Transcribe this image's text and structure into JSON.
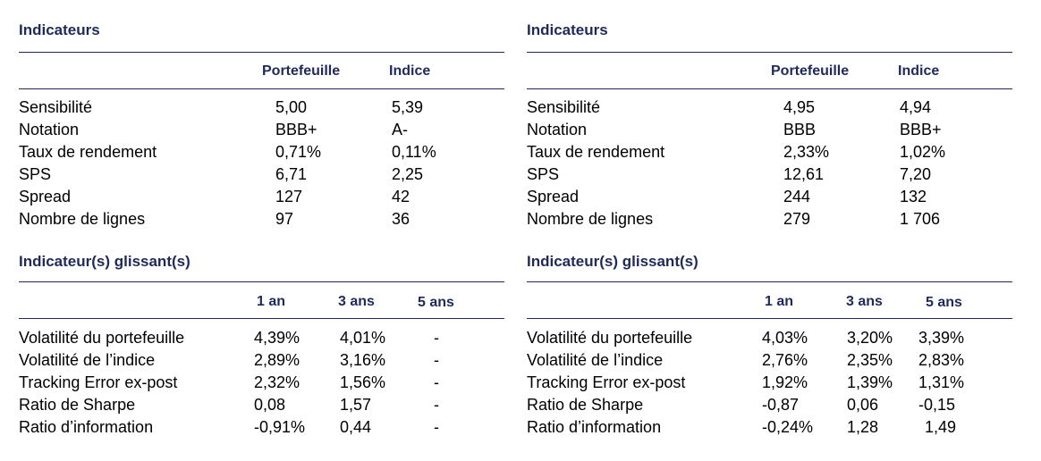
{
  "panels": [
    {
      "indicators": {
        "title": "Indicateurs",
        "col_portfolio": "Portefeuille",
        "col_index": "Indice",
        "rows": [
          {
            "label": "Sensibilité",
            "portfolio": "5,00",
            "index": "5,39"
          },
          {
            "label": "Notation",
            "portfolio": "BBB+",
            "index": "A-"
          },
          {
            "label": "Taux de rendement",
            "portfolio": "0,71%",
            "index": "0,11%"
          },
          {
            "label": "SPS",
            "portfolio": "6,71",
            "index": "2,25"
          },
          {
            "label": "Spread",
            "portfolio": "127",
            "index": "42"
          },
          {
            "label": "Nombre de lignes",
            "portfolio": "97",
            "index": "36"
          }
        ]
      },
      "rolling": {
        "title": "Indicateur(s) glissant(s)",
        "col_1y": "1 an",
        "col_3y": "3 ans",
        "col_5y": "5 ans",
        "rows": [
          {
            "label": "Volatilité du portefeuille",
            "y1": "4,39%",
            "y3": "4,01%",
            "y5": "-"
          },
          {
            "label": "Volatilité de l’indice",
            "y1": "2,89%",
            "y3": "3,16%",
            "y5": "-"
          },
          {
            "label": "Tracking Error ex-post",
            "y1": "2,32%",
            "y3": "1,56%",
            "y5": "-"
          },
          {
            "label": "Ratio de Sharpe",
            "y1": "0,08",
            "y3": "1,57",
            "y5": "-"
          },
          {
            "label": "Ratio d’information",
            "y1": "-0,91%",
            "y3": "0,44",
            "y5": "-"
          }
        ]
      }
    },
    {
      "indicators": {
        "title": "Indicateurs",
        "col_portfolio": "Portefeuille",
        "col_index": "Indice",
        "rows": [
          {
            "label": "Sensibilité",
            "portfolio": "4,95",
            "index": "4,94"
          },
          {
            "label": "Notation",
            "portfolio": "BBB",
            "index": "BBB+"
          },
          {
            "label": "Taux de rendement",
            "portfolio": "2,33%",
            "index": "1,02%"
          },
          {
            "label": "SPS",
            "portfolio": "12,61",
            "index": "7,20"
          },
          {
            "label": "Spread",
            "portfolio": "244",
            "index": "132"
          },
          {
            "label": "Nombre de lignes",
            "portfolio": "279",
            "index": "1 706"
          }
        ]
      },
      "rolling": {
        "title": "Indicateur(s) glissant(s)",
        "col_1y": "1 an",
        "col_3y": "3 ans",
        "col_5y": "5 ans",
        "rows": [
          {
            "label": "Volatilité du portefeuille",
            "y1": "4,03%",
            "y3": "3,20%",
            "y5": "3,39%"
          },
          {
            "label": "Volatilité de l’indice",
            "y1": "2,76%",
            "y3": "2,35%",
            "y5": "2,83%"
          },
          {
            "label": "Tracking Error ex-post",
            "y1": "1,92%",
            "y3": "1,39%",
            "y5": "1,31%"
          },
          {
            "label": "Ratio de Sharpe",
            "y1": "-0,87",
            "y3": "0,06",
            "y5": "-0,15"
          },
          {
            "label": "Ratio d’information",
            "y1": "-0,24%",
            "y3": "1,28",
            "y5": "1,49"
          }
        ]
      }
    }
  ],
  "colors": {
    "heading": "#1f2a5a",
    "text": "#000000",
    "background": "#ffffff"
  }
}
